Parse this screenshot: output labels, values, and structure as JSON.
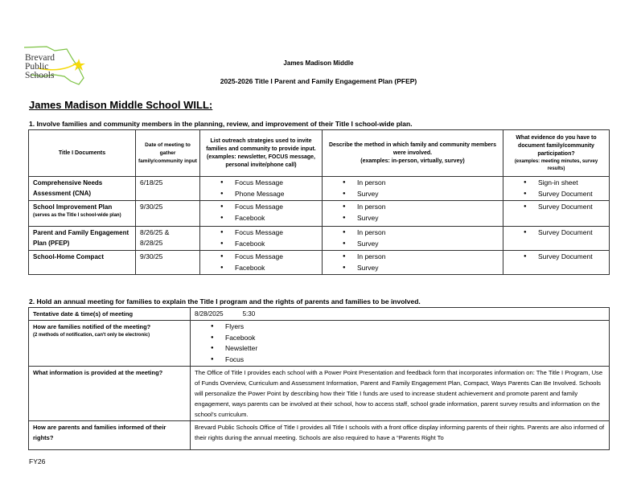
{
  "logo": {
    "lines": [
      "Brevard",
      "Public",
      "Schools"
    ],
    "colors": {
      "outline": "#7cc242",
      "star": "#f5d90a"
    }
  },
  "header": {
    "school": "James Madison Middle",
    "title": "2025-2026   Title I   Parent and Family Engagement Plan (PFEP)"
  },
  "will_heading": "James Madison Middle School WILL:",
  "section1": {
    "heading": "1.   Involve families and community members in the planning, review, and improvement of their Title I school-wide plan.",
    "columns": [
      {
        "main": "Title I Documents",
        "sub": ""
      },
      {
        "main": "Date of meeting to gather family/community input",
        "sub": ""
      },
      {
        "main": "List outreach strategies used to invite families and community to provide input.",
        "sub": "(examples: newsletter, FOCUS message, personal invite/phone call)"
      },
      {
        "main": "Describe the method in which family and community members were involved.",
        "sub": "(examples: in-person, virtually, survey)"
      },
      {
        "main": "What evidence do you have to document family/community participation?",
        "sub": "(examples: meeting minutes, survey results)"
      }
    ],
    "rows": [
      {
        "doc": "Comprehensive Needs Assessment (CNA)",
        "doc_note": "",
        "date": "6/18/25",
        "date2": "",
        "outreach": [
          "Focus Message",
          "Phone Message"
        ],
        "method": [
          "In person",
          "Survey"
        ],
        "evidence": [
          "Sign-in sheet",
          "Survey Document"
        ]
      },
      {
        "doc": "School Improvement Plan",
        "doc_note": "(serves as the Title I school-wide plan)",
        "date": "9/30/25",
        "date2": "",
        "outreach": [
          "Focus Message",
          "Facebook"
        ],
        "method": [
          "In person",
          "Survey"
        ],
        "evidence": [
          "Survey Document"
        ]
      },
      {
        "doc": "Parent and Family Engagement Plan (PFEP)",
        "doc_note": "",
        "date": "8/26/25 &",
        "date2": "8/28/25",
        "outreach": [
          "Focus Message",
          "Facebook"
        ],
        "method": [
          "In person",
          "Survey"
        ],
        "evidence": [
          "Survey Document"
        ]
      },
      {
        "doc": "School-Home Compact",
        "doc_note": "",
        "date": "9/30/25",
        "date2": "",
        "outreach": [
          "Focus Message",
          "Facebook"
        ],
        "method": [
          "In person",
          "Survey"
        ],
        "evidence": [
          "Survey Document"
        ]
      }
    ]
  },
  "section2": {
    "heading": "2.   Hold an annual meeting for families to explain the Title I program and the rights of parents and families to be involved.",
    "date_label": "Tentative date & time(s) of meeting",
    "date_value": "8/28/2025",
    "time_value": "5:30",
    "notify_label": "How are families notified of the meeting?",
    "notify_note": "(2 methods of notification, can't only be electronic)",
    "notify_methods": [
      "Flyers",
      "Facebook",
      "Newsletter",
      "Focus"
    ],
    "info_label": "What information is provided at the meeting?",
    "info_value": "The Office of Title I provides each school with a Power Point Presentation and feedback form that incorporates information on:  The Title I Program, Use of Funds Overview, Curriculum and Assessment Information, Parent and Family Engagement Plan, Compact, Ways Parents Can Be Involved.  Schools will personalize the Power Point by describing how their Title I funds are used to increase student achievement and promote parent and family engagement, ways parents can be involved at their school, how to access staff, school grade information, parent survey results and information on the school’s curriculum.",
    "rights_label": "How are parents and families informed of their rights?",
    "rights_value": "Brevard Public Schools Office of Title I provides all Title I schools with a front office display informing parents of their rights. Parents are also informed of their rights during the annual meeting.  Schools are also required to have a “Parents Right To"
  },
  "footer": "FY26"
}
